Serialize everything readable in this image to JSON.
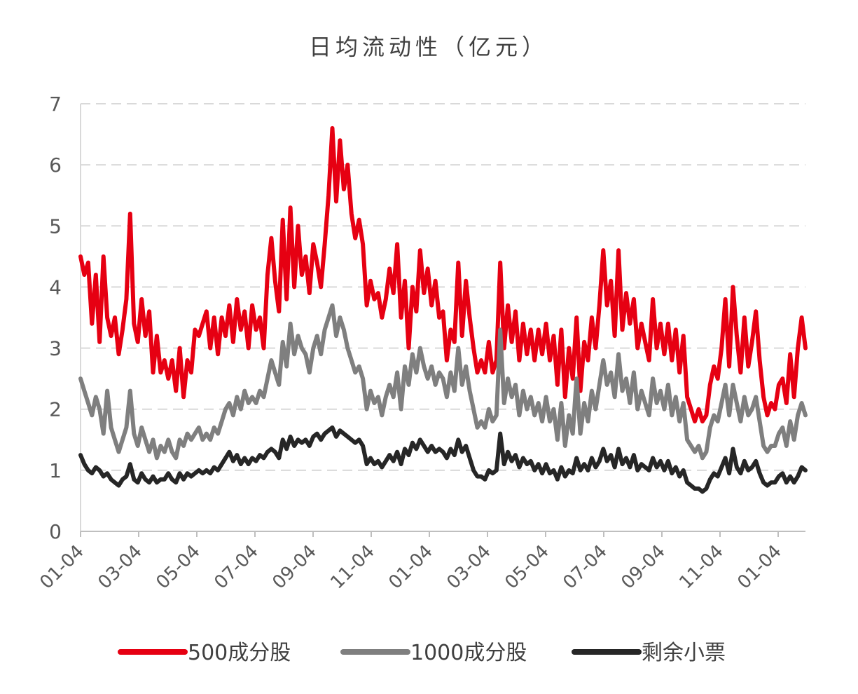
{
  "chart_data": {
    "type": "line",
    "title": "日均流动性（亿元）",
    "xlabel": "",
    "ylabel": "",
    "ylim": [
      0,
      7
    ],
    "yticks": [
      "0",
      "1",
      "2",
      "3",
      "4",
      "5",
      "6",
      "7"
    ],
    "x_tick_labels": [
      "01-04",
      "03-04",
      "05-04",
      "07-04",
      "09-04",
      "11-04",
      "01-04",
      "03-04",
      "05-04",
      "07-04",
      "09-04",
      "11-04",
      "01-04"
    ],
    "grid": true,
    "legend_position": "bottom",
    "series": [
      {
        "name": "500成分股",
        "color": "#E60012",
        "values": [
          4.5,
          4.2,
          4.4,
          3.4,
          4.2,
          3.1,
          4.5,
          3.5,
          3.2,
          3.5,
          2.9,
          3.3,
          3.8,
          5.2,
          3.4,
          3.1,
          3.8,
          3.2,
          3.6,
          2.6,
          3.2,
          2.6,
          2.8,
          2.5,
          2.8,
          2.3,
          3.0,
          2.2,
          2.8,
          2.6,
          3.3,
          3.2,
          3.4,
          3.6,
          3.0,
          3.5,
          2.9,
          3.5,
          3.2,
          3.7,
          3.1,
          3.8,
          3.3,
          3.6,
          3.0,
          3.7,
          3.3,
          3.5,
          3.0,
          4.2,
          4.8,
          4.1,
          3.6,
          5.1,
          3.8,
          5.3,
          4.0,
          5.0,
          4.2,
          4.5,
          3.9,
          4.7,
          4.4,
          4.0,
          4.7,
          5.5,
          6.6,
          5.4,
          6.4,
          5.6,
          6.0,
          5.2,
          4.8,
          5.1,
          4.7,
          3.7,
          4.1,
          3.8,
          3.9,
          3.5,
          3.8,
          4.3,
          3.9,
          4.7,
          3.5,
          4.1,
          3.0,
          4.0,
          3.6,
          4.6,
          3.9,
          4.3,
          3.7,
          4.1,
          3.5,
          3.6,
          2.8,
          3.3,
          3.1,
          4.4,
          3.2,
          4.1,
          3.5,
          3.0,
          2.6,
          2.8,
          2.6,
          3.1,
          2.6,
          2.8,
          4.4,
          3.0,
          3.7,
          3.1,
          3.6,
          2.8,
          3.4,
          2.9,
          3.3,
          2.8,
          3.3,
          2.9,
          3.4,
          2.8,
          3.2,
          2.4,
          3.3,
          2.2,
          3.0,
          2.5,
          3.5,
          2.3,
          3.1,
          2.8,
          3.5,
          3.0,
          3.7,
          4.6,
          3.7,
          4.1,
          3.2,
          4.6,
          3.3,
          3.9,
          3.4,
          3.8,
          3.0,
          3.4,
          3.1,
          2.8,
          3.8,
          3.0,
          3.4,
          2.9,
          3.4,
          2.8,
          3.3,
          2.6,
          3.2,
          2.2,
          2.0,
          1.8,
          2.0,
          1.8,
          1.9,
          2.4,
          2.7,
          2.5,
          3.0,
          3.8,
          2.7,
          4.0,
          3.2,
          2.6,
          3.5,
          2.7,
          3.1,
          3.6,
          2.8,
          2.2,
          1.9,
          2.1,
          2.0,
          2.4,
          2.5,
          2.1,
          2.9,
          2.2,
          3.0,
          3.5,
          3.0
        ]
      },
      {
        "name": "1000成分股",
        "color": "#7F7F7F",
        "values": [
          2.5,
          2.3,
          2.1,
          1.9,
          2.2,
          2.0,
          1.6,
          2.3,
          1.7,
          1.5,
          1.3,
          1.5,
          1.7,
          2.3,
          1.6,
          1.4,
          1.7,
          1.5,
          1.3,
          1.5,
          1.2,
          1.4,
          1.3,
          1.5,
          1.3,
          1.2,
          1.5,
          1.4,
          1.6,
          1.5,
          1.6,
          1.7,
          1.5,
          1.6,
          1.5,
          1.7,
          1.6,
          1.8,
          2.0,
          2.1,
          1.9,
          2.2,
          2.0,
          2.3,
          2.1,
          2.2,
          2.1,
          2.3,
          2.2,
          2.5,
          2.8,
          2.6,
          2.4,
          3.1,
          2.7,
          3.4,
          2.9,
          3.2,
          3.0,
          2.9,
          2.6,
          3.0,
          3.2,
          2.9,
          3.3,
          3.5,
          3.7,
          3.2,
          3.5,
          3.3,
          3.0,
          2.8,
          2.6,
          2.7,
          2.5,
          2.0,
          2.3,
          2.1,
          2.2,
          1.9,
          2.2,
          2.4,
          2.2,
          2.6,
          2.0,
          2.7,
          2.4,
          2.9,
          2.6,
          3.0,
          2.7,
          2.5,
          2.7,
          2.4,
          2.6,
          2.5,
          2.2,
          2.6,
          2.3,
          3.0,
          2.4,
          2.7,
          2.3,
          2.0,
          1.7,
          1.8,
          1.7,
          2.0,
          1.8,
          1.9,
          3.3,
          2.1,
          2.5,
          2.2,
          2.4,
          1.9,
          2.3,
          2.0,
          2.2,
          1.9,
          2.1,
          1.8,
          2.2,
          1.8,
          2.0,
          1.5,
          2.1,
          1.4,
          1.9,
          1.6,
          2.5,
          1.6,
          2.1,
          1.8,
          2.3,
          2.0,
          2.4,
          2.8,
          2.4,
          2.6,
          2.2,
          2.9,
          2.3,
          2.5,
          2.1,
          2.6,
          2.0,
          2.3,
          2.1,
          1.9,
          2.5,
          2.1,
          2.3,
          2.0,
          2.4,
          1.9,
          2.2,
          1.8,
          2.1,
          1.5,
          1.4,
          1.3,
          1.4,
          1.2,
          1.3,
          1.7,
          1.9,
          1.8,
          2.1,
          2.4,
          1.9,
          2.4,
          2.1,
          1.8,
          2.2,
          1.9,
          2.0,
          2.2,
          1.8,
          1.4,
          1.3,
          1.4,
          1.4,
          1.6,
          1.7,
          1.4,
          1.8,
          1.5,
          1.9,
          2.1,
          1.9
        ]
      },
      {
        "name": "剩余小票",
        "color": "#262626",
        "values": [
          1.25,
          1.1,
          1.0,
          0.95,
          1.05,
          1.0,
          0.9,
          0.95,
          0.85,
          0.8,
          0.75,
          0.85,
          0.9,
          1.1,
          0.85,
          0.8,
          0.95,
          0.85,
          0.8,
          0.9,
          0.8,
          0.85,
          0.85,
          0.95,
          0.85,
          0.8,
          0.95,
          0.85,
          0.95,
          0.9,
          0.95,
          1.0,
          0.95,
          1.0,
          0.95,
          1.05,
          1.0,
          1.1,
          1.2,
          1.3,
          1.15,
          1.25,
          1.1,
          1.2,
          1.1,
          1.2,
          1.15,
          1.25,
          1.2,
          1.3,
          1.35,
          1.3,
          1.2,
          1.5,
          1.35,
          1.55,
          1.4,
          1.5,
          1.45,
          1.5,
          1.4,
          1.55,
          1.6,
          1.5,
          1.6,
          1.65,
          1.7,
          1.55,
          1.65,
          1.6,
          1.55,
          1.5,
          1.45,
          1.5,
          1.4,
          1.1,
          1.2,
          1.1,
          1.15,
          1.05,
          1.15,
          1.25,
          1.15,
          1.3,
          1.1,
          1.35,
          1.25,
          1.45,
          1.35,
          1.5,
          1.4,
          1.3,
          1.4,
          1.3,
          1.35,
          1.3,
          1.2,
          1.35,
          1.25,
          1.5,
          1.3,
          1.4,
          1.2,
          1.0,
          0.9,
          0.9,
          0.85,
          1.0,
          0.95,
          1.0,
          1.6,
          1.1,
          1.3,
          1.15,
          1.25,
          1.05,
          1.2,
          1.1,
          1.15,
          1.0,
          1.1,
          0.95,
          1.1,
          0.95,
          1.0,
          0.85,
          1.05,
          0.9,
          1.0,
          0.95,
          1.2,
          1.0,
          1.1,
          1.0,
          1.2,
          1.05,
          1.15,
          1.35,
          1.15,
          1.25,
          1.05,
          1.35,
          1.1,
          1.2,
          1.05,
          1.25,
          1.0,
          1.1,
          1.05,
          1.0,
          1.2,
          1.05,
          1.15,
          1.0,
          1.15,
          0.95,
          1.05,
          0.9,
          1.0,
          0.8,
          0.75,
          0.7,
          0.7,
          0.65,
          0.7,
          0.85,
          0.95,
          0.9,
          1.05,
          1.2,
          0.95,
          1.35,
          1.05,
          0.95,
          1.15,
          1.0,
          1.05,
          1.15,
          0.95,
          0.8,
          0.75,
          0.8,
          0.8,
          0.9,
          0.95,
          0.8,
          0.9,
          0.8,
          0.9,
          1.05,
          1.0
        ]
      }
    ]
  }
}
